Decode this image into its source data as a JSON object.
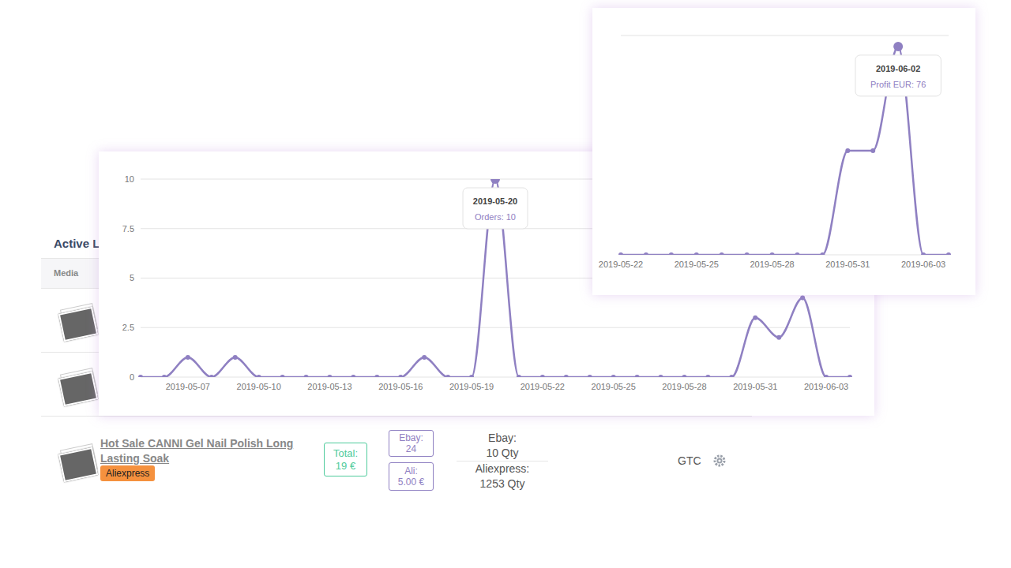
{
  "chart_data": [
    {
      "type": "line",
      "categories": [
        null,
        null,
        "2019-05-07",
        null,
        null,
        "2019-05-10",
        null,
        null,
        "2019-05-13",
        null,
        null,
        "2019-05-16",
        null,
        null,
        "2019-05-19",
        null,
        null,
        "2019-05-22",
        null,
        null,
        "2019-05-25",
        null,
        null,
        "2019-05-28",
        null,
        null,
        "2019-05-31",
        null,
        null,
        "2019-06-03",
        null
      ],
      "values": [
        0,
        0,
        1,
        0,
        1,
        0,
        0,
        0,
        0,
        0,
        0,
        0,
        1,
        0,
        0,
        10,
        0,
        0,
        0,
        0,
        0,
        0,
        0,
        0,
        0,
        0,
        3,
        2,
        4,
        0,
        0
      ],
      "color": "#8f80c2",
      "ylim": [
        0,
        10
      ],
      "yticks": [
        0,
        2.5,
        5,
        7.5,
        10
      ],
      "grid": true,
      "marker": "circle",
      "line_style": "smooth",
      "annotations": [
        {
          "index": 15,
          "title": "2019-05-20",
          "text": "Orders: 10"
        }
      ]
    },
    {
      "type": "line",
      "categories": [
        "2019-05-22",
        null,
        null,
        "2019-05-25",
        null,
        null,
        "2019-05-28",
        null,
        null,
        "2019-05-31",
        null,
        null,
        "2019-06-03",
        null
      ],
      "values": [
        0,
        0,
        0,
        0,
        0,
        0,
        0,
        0,
        0,
        38,
        38,
        76,
        0,
        0
      ],
      "color": "#8f80c2",
      "ylim": [
        0,
        80
      ],
      "yticks": [
        0,
        20,
        40,
        60,
        80
      ],
      "grid": true,
      "tick_labels": "x",
      "marker": "circle",
      "line_style": "smooth",
      "annotations": [
        {
          "index": 11,
          "title": "2019-06-02",
          "text": "Profit EUR: 76"
        }
      ]
    }
  ],
  "listing": {
    "heading": "Active L",
    "columns": [
      "Media"
    ],
    "item": {
      "title": "Hot Sale CANNI Gel Nail Polish Long Lasting Soak",
      "source": "Aliexpress",
      "total": {
        "label": "Total:",
        "value": "19 €"
      },
      "prices": [
        {
          "label": "Ebay:",
          "value": "24"
        },
        {
          "label": "Ali:",
          "value": "5.00 €"
        }
      ],
      "stock": [
        {
          "label": "Ebay:",
          "value": "10 Qty"
        },
        {
          "label": "Aliexpress:",
          "value": "1253 Qty"
        }
      ],
      "duration": "GTC"
    }
  }
}
